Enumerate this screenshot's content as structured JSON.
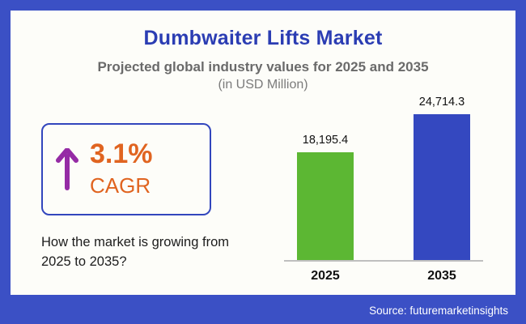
{
  "header": {
    "title": "Dumbwaiter Lifts Market",
    "subtitle": "Projected global industry values for 2025 and 2035",
    "unit": "(in USD Million)"
  },
  "cagr": {
    "value": "3.1%",
    "label": "CAGR",
    "arrow_icon": "up-arrow-icon",
    "description": "How the market is growing from 2025 to 2035?"
  },
  "chart_data": {
    "type": "bar",
    "title": "Dumbwaiter Lifts Market",
    "categories": [
      "2025",
      "2035"
    ],
    "values": [
      18195.4,
      24714.3
    ],
    "value_labels": [
      "18,195.4",
      "24,714.3"
    ],
    "bar_colors": [
      "#5cb733",
      "#3448c0"
    ],
    "ylabel": "USD Million",
    "ylim": [
      0,
      24714.3
    ],
    "grid": false,
    "legend": "none"
  },
  "footer": {
    "source": "Source: futuremarketinsights"
  },
  "colors": {
    "frame_blue": "#3b50c5",
    "title_blue": "#2b3db3",
    "accent_orange": "#e06420",
    "arrow_purple": "#952ba5",
    "bar_green": "#5cb733",
    "bar_blue": "#3448c0",
    "card_bg": "#fdfdf9"
  }
}
